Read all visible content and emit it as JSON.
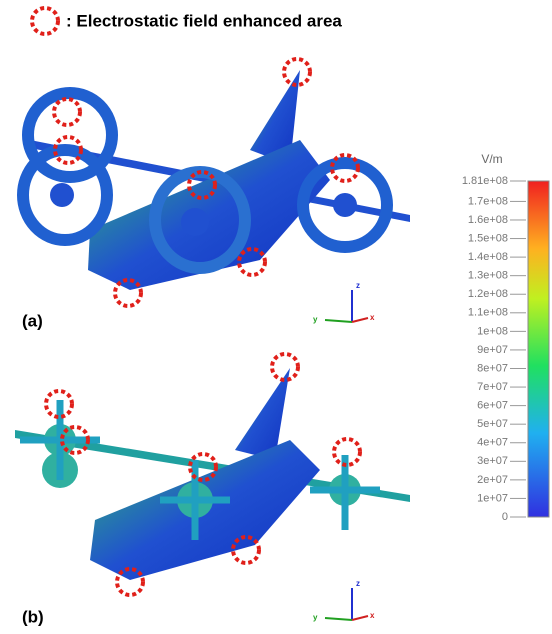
{
  "legend": {
    "text": ": Electrostatic field enhanced area"
  },
  "panels": [
    {
      "label": "(a)",
      "axes": {
        "x": "x",
        "y": "y",
        "z": "z"
      }
    },
    {
      "label": "(b)",
      "axes": {
        "x": "x",
        "y": "y",
        "z": "z"
      }
    }
  ],
  "colorbar": {
    "unit": "V/m",
    "ticks": [
      {
        "value": 181000000,
        "label": "1.81e+08"
      },
      {
        "value": 170000000,
        "label": "1.7e+08"
      },
      {
        "value": 160000000,
        "label": "1.6e+08"
      },
      {
        "value": 150000000,
        "label": "1.5e+08"
      },
      {
        "value": 140000000,
        "label": "1.4e+08"
      },
      {
        "value": 130000000,
        "label": "1.3e+08"
      },
      {
        "value": 120000000,
        "label": "1.2e+08"
      },
      {
        "value": 110000000,
        "label": "1.1e+08"
      },
      {
        "value": 100000000,
        "label": "1e+08"
      },
      {
        "value": 90000000,
        "label": "9e+07"
      },
      {
        "value": 80000000,
        "label": "8e+07"
      },
      {
        "value": 70000000,
        "label": "7e+07"
      },
      {
        "value": 60000000,
        "label": "6e+07"
      },
      {
        "value": 50000000,
        "label": "5e+07"
      },
      {
        "value": 40000000,
        "label": "4e+07"
      },
      {
        "value": 30000000,
        "label": "3e+07"
      },
      {
        "value": 20000000,
        "label": "2e+07"
      },
      {
        "value": 10000000,
        "label": "1e+07"
      },
      0
    ]
  }
}
